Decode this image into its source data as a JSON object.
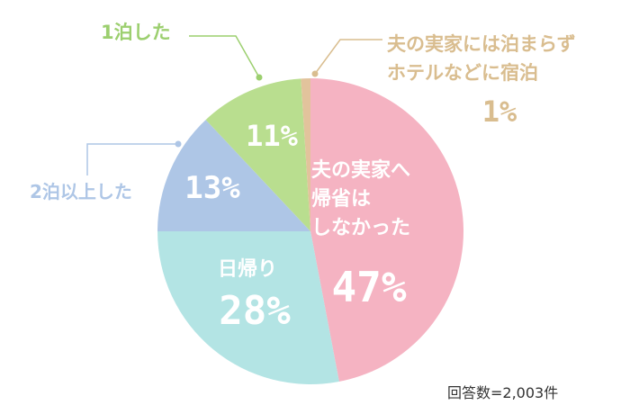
{
  "chart_data": {
    "type": "pie",
    "slices": [
      {
        "label_lines": [
          "夫の実家へ",
          "帰省は",
          "しなかった"
        ],
        "value": 47,
        "value_text": "47%",
        "color": "#f5b3c2",
        "label_color": "#ffffff"
      },
      {
        "label_lines": [
          "日帰り"
        ],
        "value": 28,
        "value_text": "28%",
        "color": "#b3e4e4",
        "label_color": "#ffffff"
      },
      {
        "label_lines": [
          "2泊以上した"
        ],
        "value": 13,
        "value_text": "13%",
        "color": "#aec6e6",
        "label_color": "#aec6e6"
      },
      {
        "label_lines": [
          "1泊した"
        ],
        "value": 11,
        "value_text": "11%",
        "color": "#b9de8f",
        "label_color": "#9ccf6f"
      },
      {
        "label_lines": [
          "夫の実家には泊まらず",
          "ホテルなどに宿泊"
        ],
        "value": 1,
        "value_text": "1%",
        "color": "#e2c39c",
        "label_color": "#d9bd8f"
      }
    ],
    "footnote": "回答数=2,003件"
  }
}
